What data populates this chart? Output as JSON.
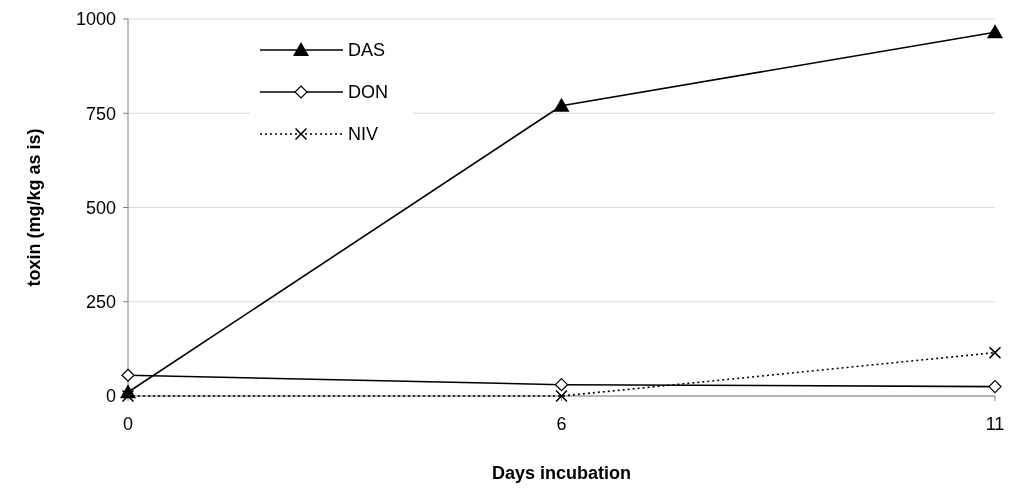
{
  "chart_data": {
    "type": "line",
    "xlabel": "Days incubation",
    "ylabel": "toxin (mg/kg as is)",
    "categories": [
      "0",
      "6",
      "11"
    ],
    "series": [
      {
        "name": "DAS",
        "color": "#000000",
        "values": [
          10,
          770,
          965
        ],
        "marker": "triangle",
        "line_style": "solid"
      },
      {
        "name": "DON",
        "color": "#000000",
        "values": [
          55,
          30,
          25
        ],
        "marker": "diamond",
        "line_style": "solid"
      },
      {
        "name": "NIV",
        "color": "#000000",
        "values": [
          0,
          0,
          115
        ],
        "marker": "cross",
        "line_style": "dotted"
      }
    ],
    "ylim": [
      0,
      1000
    ],
    "yticks": [
      0,
      250,
      500,
      750,
      1000
    ],
    "grid": "y",
    "legend": "top left"
  }
}
